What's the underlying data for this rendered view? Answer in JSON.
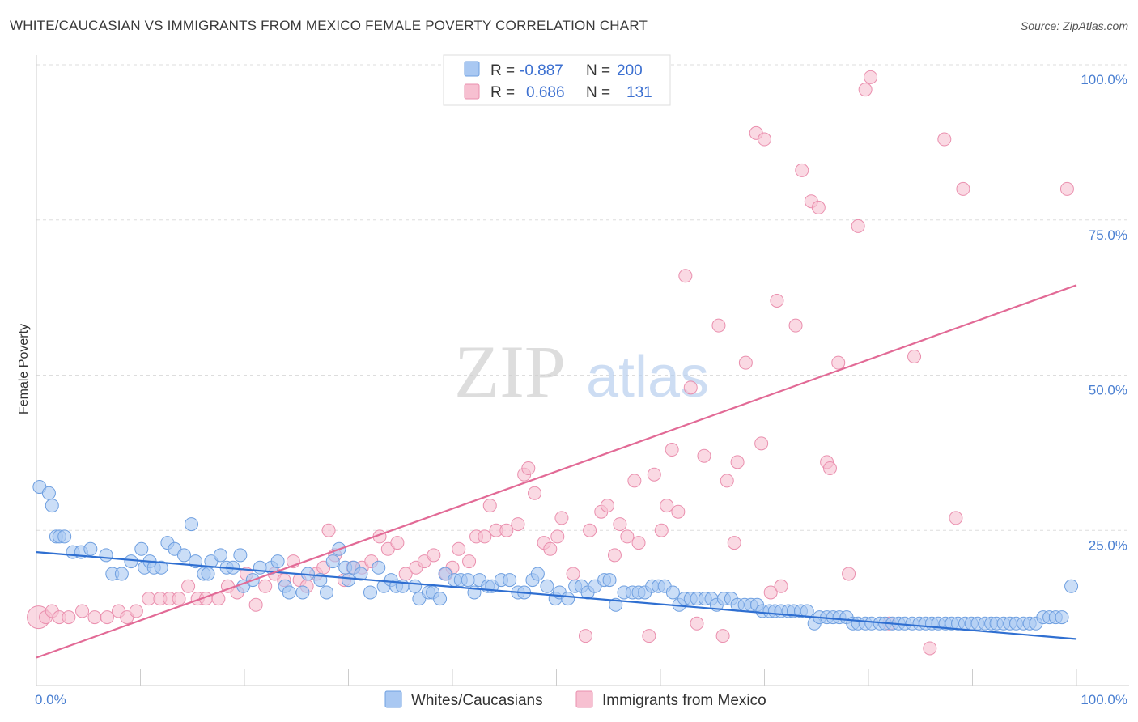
{
  "title": "WHITE/CAUCASIAN VS IMMIGRANTS FROM MEXICO FEMALE POVERTY CORRELATION CHART",
  "source": "Source: ZipAtlas.com",
  "watermark_zip": "ZIP",
  "watermark_atlas": "atlas",
  "colors": {
    "blue_fill": "#a9c8f2",
    "blue_stroke": "#6e9fe0",
    "blue_line": "#2f6fd1",
    "pink_fill": "#f7c0d1",
    "pink_stroke": "#ea8fae",
    "pink_line": "#e26a96",
    "tick": "#4a7fd1",
    "grid": "#dddddd"
  },
  "legend": {
    "r_label": "R =",
    "n_label": "N =",
    "rows": [
      {
        "r": "-0.887",
        "n": "200"
      },
      {
        "r": "0.686",
        "n": "131"
      }
    ]
  },
  "bottom_legend": [
    "Whites/Caucasians",
    "Immigrants from Mexico"
  ],
  "chart_data": {
    "type": "scatter",
    "ylabel": "Female Poverty",
    "x_tick_labels": [
      "0.0%",
      "100.0%"
    ],
    "y_tick_labels": [
      "25.0%",
      "50.0%",
      "75.0%",
      "100.0%"
    ],
    "xlim": [
      0,
      100
    ],
    "ylim": [
      0,
      100
    ],
    "y_ticks": [
      25,
      50,
      75,
      100
    ],
    "grid": true,
    "series": [
      {
        "name": "Whites/Caucasians",
        "trend": {
          "x": [
            0,
            100
          ],
          "y": [
            21.5,
            7.5
          ]
        },
        "points": [
          [
            0.3,
            32
          ],
          [
            1.2,
            31
          ],
          [
            1.5,
            29
          ],
          [
            1.9,
            24
          ],
          [
            2.2,
            24
          ],
          [
            2.7,
            24
          ],
          [
            3.5,
            21.5
          ],
          [
            4.3,
            21.5
          ],
          [
            5.2,
            22
          ],
          [
            6.7,
            21
          ],
          [
            7.3,
            18
          ],
          [
            8.2,
            18
          ],
          [
            9.1,
            20
          ],
          [
            10.1,
            22
          ],
          [
            10.4,
            19
          ],
          [
            10.9,
            20
          ],
          [
            11.3,
            19
          ],
          [
            12,
            19
          ],
          [
            12.6,
            23
          ],
          [
            13.3,
            22
          ],
          [
            14.2,
            21
          ],
          [
            14.9,
            26
          ],
          [
            15.3,
            20
          ],
          [
            16.1,
            18
          ],
          [
            16.5,
            18
          ],
          [
            16.8,
            20
          ],
          [
            17.7,
            21
          ],
          [
            18.3,
            19
          ],
          [
            18.9,
            19
          ],
          [
            19.6,
            21
          ],
          [
            19.9,
            16
          ],
          [
            20.8,
            17
          ],
          [
            21.5,
            19
          ],
          [
            22.6,
            19
          ],
          [
            23.2,
            20
          ],
          [
            23.9,
            16
          ],
          [
            24.3,
            15
          ],
          [
            25.6,
            15
          ],
          [
            26.1,
            18
          ],
          [
            27.3,
            17
          ],
          [
            27.9,
            15
          ],
          [
            28.5,
            20
          ],
          [
            29.1,
            22
          ],
          [
            29.7,
            19
          ],
          [
            30,
            17
          ],
          [
            30.5,
            19
          ],
          [
            31.2,
            18
          ],
          [
            32.1,
            15
          ],
          [
            32.9,
            19
          ],
          [
            33.4,
            16
          ],
          [
            34.1,
            17
          ],
          [
            34.6,
            16
          ],
          [
            35.2,
            16
          ],
          [
            36.4,
            16
          ],
          [
            36.8,
            14
          ],
          [
            37.7,
            15
          ],
          [
            38.1,
            15
          ],
          [
            38.8,
            14
          ],
          [
            39.3,
            18
          ],
          [
            40.2,
            17
          ],
          [
            40.8,
            17
          ],
          [
            41.5,
            17
          ],
          [
            42.1,
            15
          ],
          [
            42.6,
            17
          ],
          [
            43.4,
            16
          ],
          [
            43.8,
            16
          ],
          [
            44.7,
            17
          ],
          [
            45.5,
            17
          ],
          [
            46.3,
            15
          ],
          [
            46.9,
            15
          ],
          [
            47.7,
            17
          ],
          [
            48.2,
            18
          ],
          [
            49.1,
            16
          ],
          [
            49.9,
            14
          ],
          [
            50.3,
            15
          ],
          [
            51.1,
            14
          ],
          [
            51.8,
            16
          ],
          [
            52.4,
            16
          ],
          [
            53,
            15
          ],
          [
            53.7,
            16
          ],
          [
            54.6,
            17
          ],
          [
            55.1,
            17
          ],
          [
            55.7,
            13
          ],
          [
            56.5,
            15
          ],
          [
            57.3,
            15
          ],
          [
            57.9,
            15
          ],
          [
            58.5,
            15
          ],
          [
            59.2,
            16
          ],
          [
            59.8,
            16
          ],
          [
            60.4,
            16
          ],
          [
            61.2,
            15
          ],
          [
            61.8,
            13
          ],
          [
            62.3,
            14
          ],
          [
            62.9,
            14
          ],
          [
            63.5,
            14
          ],
          [
            64.3,
            14
          ],
          [
            64.9,
            14
          ],
          [
            65.4,
            13
          ],
          [
            66.1,
            14
          ],
          [
            66.8,
            14
          ],
          [
            67.4,
            13
          ],
          [
            68.1,
            13
          ],
          [
            68.7,
            13
          ],
          [
            69.3,
            13
          ],
          [
            69.8,
            12
          ],
          [
            70.5,
            12
          ],
          [
            71,
            12
          ],
          [
            71.6,
            12
          ],
          [
            72.3,
            12
          ],
          [
            72.8,
            12
          ],
          [
            73.5,
            12
          ],
          [
            74.1,
            12
          ],
          [
            74.8,
            10
          ],
          [
            75.3,
            11
          ],
          [
            76,
            11
          ],
          [
            76.6,
            11
          ],
          [
            77.2,
            11
          ],
          [
            77.9,
            11
          ],
          [
            78.5,
            10
          ],
          [
            79,
            10
          ],
          [
            79.7,
            10
          ],
          [
            80.3,
            10
          ],
          [
            81.1,
            10
          ],
          [
            81.6,
            10
          ],
          [
            82.3,
            10
          ],
          [
            82.9,
            10
          ],
          [
            83.5,
            10
          ],
          [
            84.2,
            10
          ],
          [
            84.9,
            10
          ],
          [
            85.5,
            10
          ],
          [
            86.1,
            10
          ],
          [
            86.7,
            10
          ],
          [
            87.4,
            10
          ],
          [
            88,
            10
          ],
          [
            88.6,
            10
          ],
          [
            89.3,
            10
          ],
          [
            89.9,
            10
          ],
          [
            90.5,
            10
          ],
          [
            91.2,
            10
          ],
          [
            91.8,
            10
          ],
          [
            92.3,
            10
          ],
          [
            93,
            10
          ],
          [
            93.6,
            10
          ],
          [
            94.2,
            10
          ],
          [
            94.9,
            10
          ],
          [
            95.5,
            10
          ],
          [
            96.1,
            10
          ],
          [
            96.8,
            11
          ],
          [
            97.4,
            11
          ],
          [
            98,
            11
          ],
          [
            98.6,
            11
          ],
          [
            99.5,
            16
          ]
        ]
      },
      {
        "name": "Immigrants from Mexico",
        "trend": {
          "x": [
            0,
            100
          ],
          "y": [
            4.5,
            64.5
          ]
        },
        "points": [
          [
            0.2,
            11
          ],
          [
            0.9,
            11
          ],
          [
            1.5,
            12
          ],
          [
            2.2,
            11
          ],
          [
            3.1,
            11
          ],
          [
            4.4,
            12
          ],
          [
            5.6,
            11
          ],
          [
            6.8,
            11
          ],
          [
            7.9,
            12
          ],
          [
            8.7,
            11
          ],
          [
            9.6,
            12
          ],
          [
            10.8,
            14
          ],
          [
            11.9,
            14
          ],
          [
            12.8,
            14
          ],
          [
            13.7,
            14
          ],
          [
            14.6,
            16
          ],
          [
            15.5,
            14
          ],
          [
            16.3,
            14
          ],
          [
            17.5,
            14
          ],
          [
            18.4,
            16
          ],
          [
            19.3,
            15
          ],
          [
            20.2,
            18
          ],
          [
            21.1,
            13
          ],
          [
            22,
            16
          ],
          [
            22.9,
            18
          ],
          [
            23.8,
            17
          ],
          [
            24.7,
            20
          ],
          [
            25.3,
            17
          ],
          [
            26,
            16
          ],
          [
            26.9,
            18
          ],
          [
            27.6,
            19
          ],
          [
            28.1,
            25
          ],
          [
            28.7,
            21
          ],
          [
            29.6,
            17
          ],
          [
            30.4,
            19
          ],
          [
            31.3,
            19
          ],
          [
            32.2,
            20
          ],
          [
            33,
            24
          ],
          [
            33.8,
            22
          ],
          [
            34.7,
            23
          ],
          [
            35.5,
            18
          ],
          [
            36.5,
            19
          ],
          [
            37.3,
            20
          ],
          [
            38.2,
            21
          ],
          [
            39.4,
            18
          ],
          [
            40,
            19
          ],
          [
            40.6,
            22
          ],
          [
            41.6,
            20
          ],
          [
            42.3,
            24
          ],
          [
            43.1,
            24
          ],
          [
            43.6,
            29
          ],
          [
            44.2,
            25
          ],
          [
            45.2,
            25
          ],
          [
            46.3,
            26
          ],
          [
            46.9,
            34
          ],
          [
            47.3,
            35
          ],
          [
            47.9,
            31
          ],
          [
            48.8,
            23
          ],
          [
            49.4,
            22
          ],
          [
            50.1,
            24
          ],
          [
            50.5,
            27
          ],
          [
            51.6,
            18
          ],
          [
            52.8,
            8
          ],
          [
            53.2,
            25
          ],
          [
            54.3,
            28
          ],
          [
            54.9,
            29
          ],
          [
            55.6,
            21
          ],
          [
            56.1,
            26
          ],
          [
            56.8,
            24
          ],
          [
            57.5,
            33
          ],
          [
            57.9,
            23
          ],
          [
            58.9,
            8
          ],
          [
            59.4,
            34
          ],
          [
            60.1,
            25
          ],
          [
            60.6,
            29
          ],
          [
            61.1,
            38
          ],
          [
            61.7,
            28
          ],
          [
            62.4,
            66
          ],
          [
            62.9,
            48
          ],
          [
            63.5,
            10
          ],
          [
            64.2,
            37
          ],
          [
            65.6,
            58
          ],
          [
            66,
            8
          ],
          [
            66.4,
            33
          ],
          [
            67.1,
            23
          ],
          [
            67.4,
            36
          ],
          [
            68.2,
            52
          ],
          [
            69.2,
            89
          ],
          [
            69.7,
            39
          ],
          [
            70,
            88
          ],
          [
            70.6,
            15
          ],
          [
            71.2,
            62
          ],
          [
            71.6,
            16
          ],
          [
            73,
            58
          ],
          [
            73.6,
            83
          ],
          [
            74.5,
            78
          ],
          [
            75.2,
            77
          ],
          [
            76,
            36
          ],
          [
            76.3,
            35
          ],
          [
            77.1,
            52
          ],
          [
            78.1,
            18
          ],
          [
            79,
            74
          ],
          [
            79.7,
            96
          ],
          [
            80.2,
            98
          ],
          [
            82,
            10
          ],
          [
            84.4,
            53
          ],
          [
            85.9,
            6
          ],
          [
            87.3,
            88
          ],
          [
            88.4,
            27
          ],
          [
            89.1,
            80
          ],
          [
            99.1,
            80
          ]
        ]
      }
    ]
  }
}
